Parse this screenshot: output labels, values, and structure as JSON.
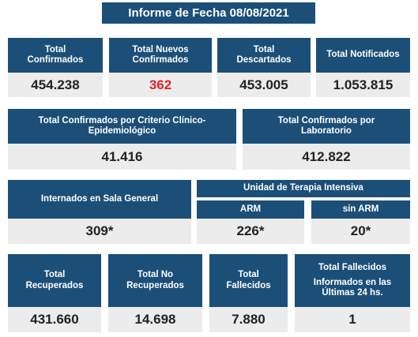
{
  "title": "Informe de Fecha 08/08/2021",
  "row1": [
    {
      "label": "Total Confirmados",
      "value": "454.238"
    },
    {
      "label": "Total Nuevos Confirmados",
      "value": "362"
    },
    {
      "label": "Total Descartados",
      "value": "453.005"
    },
    {
      "label": "Total Notificados",
      "value": "1.053.815"
    }
  ],
  "row2": [
    {
      "label": "Total Confirmados por Criterio Clínico-Epidemiológico",
      "value": "41.416"
    },
    {
      "label": "Total Confirmados por Laboratorio",
      "value": "412.822"
    }
  ],
  "row3": {
    "sala_general": {
      "label": "Internados en Sala General",
      "value": "309*"
    },
    "uti": {
      "label": "Unidad de Terapia Intensiva",
      "arm": {
        "label": "ARM",
        "value": "226*"
      },
      "sin_arm": {
        "label": "sin ARM",
        "value": "20*"
      }
    }
  },
  "row4": [
    {
      "label": "Total Recuperados",
      "value": "431.660"
    },
    {
      "label": "Total No Recuperados",
      "value": "14.698"
    },
    {
      "label": "Total Fallecidos",
      "value": "7.880"
    },
    {
      "label": "Total Fallecidos",
      "sublabel": "Informados en las Últimas 24 hs.",
      "value": "1"
    }
  ],
  "colors": {
    "header": "#1c4f78",
    "value_bg": "#ececec",
    "highlight": "#e8202a"
  }
}
